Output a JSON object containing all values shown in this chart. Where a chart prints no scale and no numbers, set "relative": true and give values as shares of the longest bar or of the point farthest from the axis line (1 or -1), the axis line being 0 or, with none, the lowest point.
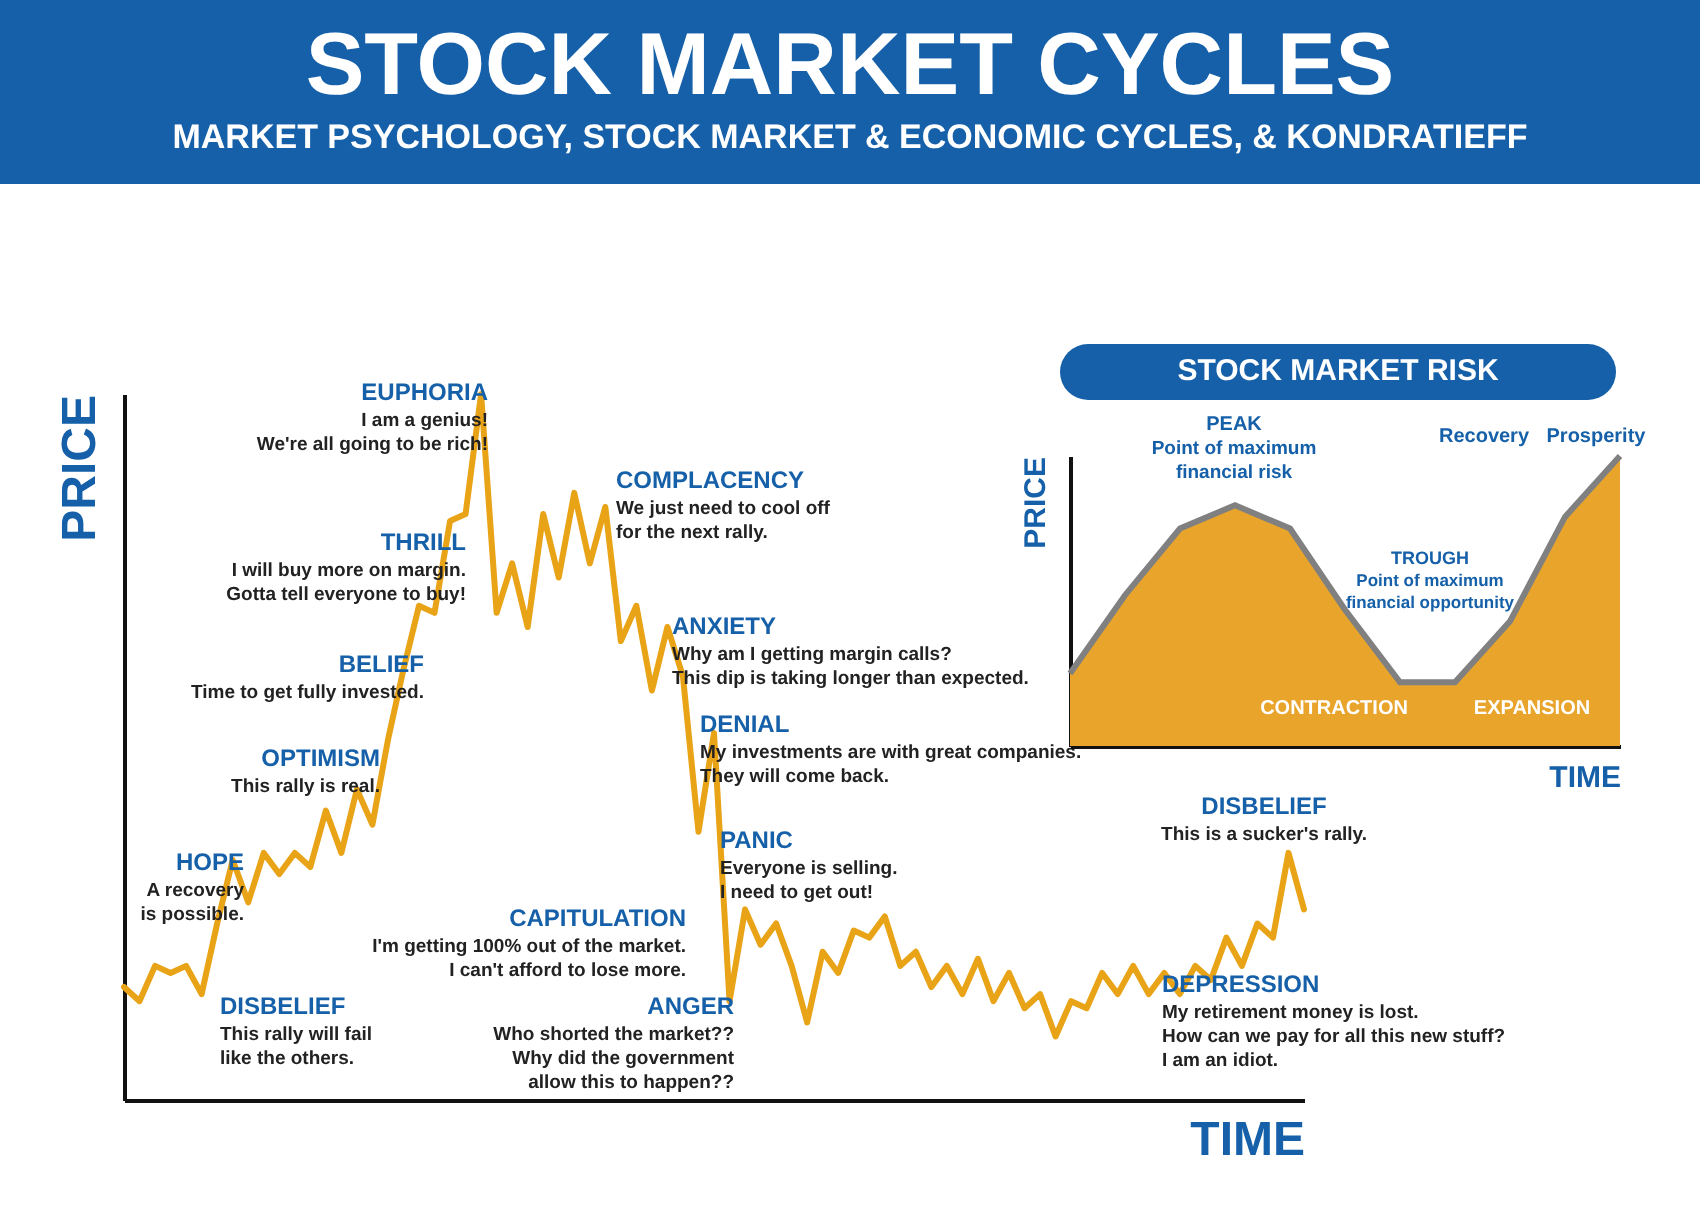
{
  "chart_data": [
    {
      "type": "line",
      "title": "STOCK MARKET CYCLES",
      "subtitle": "MARKET PSYCHOLOGY, STOCK MARKET & ECONOMIC CYCLES, & KONDRATIEFF",
      "xlabel": "TIME",
      "ylabel": "PRICE",
      "relative": true,
      "categories": [
        null,
        null,
        null,
        null,
        null,
        null,
        null,
        null,
        null,
        null,
        null,
        null,
        null,
        null,
        null,
        null,
        null,
        null,
        null,
        null,
        null,
        null,
        null,
        null,
        null,
        null,
        null,
        null,
        null,
        null,
        null,
        null,
        null,
        null,
        null,
        null,
        null,
        null,
        null,
        null,
        null,
        null,
        null,
        null,
        null,
        null,
        null,
        null,
        null,
        null,
        null,
        null,
        null,
        null,
        null,
        null,
        null,
        null,
        null,
        null,
        null,
        null,
        null,
        null,
        null,
        null,
        null,
        null,
        null,
        null,
        null,
        null,
        null,
        null,
        null,
        null,
        null
      ],
      "series": [
        {
          "color": "#e8a317",
          "values": [
            0.16,
            0.14,
            0.19,
            0.18,
            0.19,
            0.15,
            0.25,
            0.34,
            0.28,
            0.35,
            0.32,
            0.35,
            0.33,
            0.41,
            0.35,
            0.44,
            0.39,
            0.51,
            0.61,
            0.7,
            0.69,
            0.82,
            0.83,
            1,
            0.69,
            0.76,
            0.67,
            0.83,
            0.74,
            0.86,
            0.76,
            0.84,
            0.65,
            0.7,
            0.58,
            0.67,
            0.6,
            0.38,
            0.52,
            0.14,
            0.27,
            0.22,
            0.25,
            0.19,
            0.11,
            0.21,
            0.18,
            0.24,
            0.23,
            0.26,
            0.19,
            0.21,
            0.16,
            0.19,
            0.15,
            0.2,
            0.14,
            0.18,
            0.13,
            0.15,
            0.09,
            0.14,
            0.13,
            0.18,
            0.15,
            0.19,
            0.15,
            0.18,
            0.15,
            0.19,
            0.17,
            0.23,
            0.19,
            0.25,
            0.23,
            0.35,
            0.27
          ]
        }
      ],
      "annotations": [
        "HOPE\nA recovery\nis possible.",
        "DISBELIEF\nThis rally will fail\nlike the others.",
        "OPTIMISM\nThis rally is real.",
        "BELIEF\nTime to get fully invested.",
        "THRILL\nI will buy more on margin.\nGotta tell everyone to buy!",
        "EUPHORIA\nI am a genius!\nWe're all going to be rich!",
        "CAPITULATION\nI'm getting 100% out of the market.\nI can't afford to lose more.",
        "ANGER\nWho shorted the market??\nWhy did the government\nallow this to happen??",
        "COMPLACENCY\nWe just need to cool off\nfor the next rally.",
        "ANXIETY\nWhy am I getting margin calls?\nThis dip is taking longer than expected.",
        "DENIAL\nMy investments are with great companies.\nThey will come back.",
        "PANIC\nEveryone is selling.\nI need to get out!",
        "DISBELIEF\nThis is a sucker's rally.",
        "DEPRESSION\nMy retirement money is lost.\nHow can we pay for all this new stuff?\nI am an idiot."
      ]
    },
    {
      "type": "area",
      "title": "STOCK MARKET RISK",
      "xlabel": "TIME",
      "ylabel": "PRICE",
      "relative": true,
      "categories": [
        null,
        null,
        null,
        null,
        null,
        null,
        null,
        null,
        null,
        null,
        null
      ],
      "series": [
        {
          "color": "#e9a42c",
          "values": [
            0.25,
            0.52,
            0.75,
            0.83,
            0.75,
            0.47,
            0.22,
            0.22,
            0.43,
            0.79,
            1
          ]
        }
      ],
      "annotations": [
        "PEAK\nPoint of maximum\nfinancial risk",
        "TROUGH\nPoint of maximum\nfinancial opportunity",
        "Recovery",
        "Prosperity",
        "CONTRACTION",
        "EXPANSION"
      ]
    }
  ]
}
